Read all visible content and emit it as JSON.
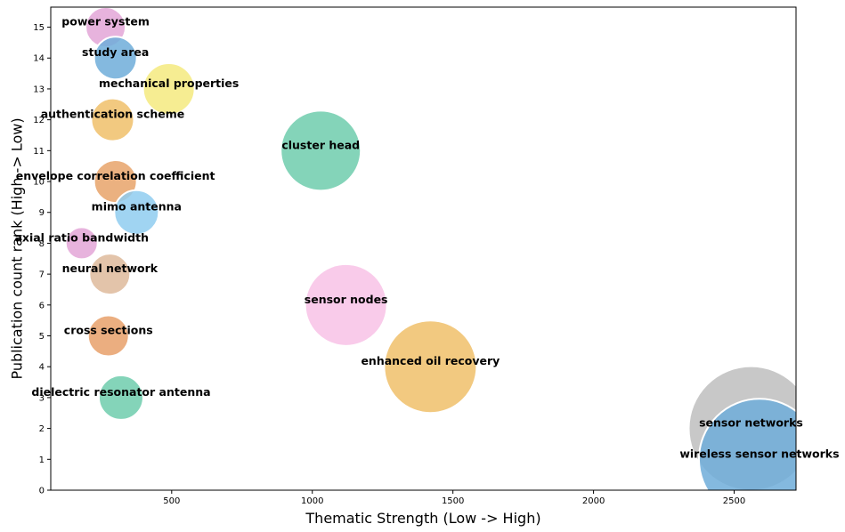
{
  "chart_data": {
    "type": "scatter",
    "subtype": "bubble",
    "title": "",
    "xlabel": "Thematic Strength (Low -> High)",
    "ylabel": "Publication count rank (High -> Low)",
    "xlim": [
      70,
      2720
    ],
    "ylim": [
      0,
      15.65
    ],
    "xticks": [
      500,
      1000,
      1500,
      2000,
      2500
    ],
    "yticks": [
      0,
      1,
      2,
      3,
      4,
      5,
      6,
      7,
      8,
      9,
      10,
      11,
      12,
      13,
      14,
      15
    ],
    "grid": false,
    "legend": "none",
    "points": [
      {
        "label": "power system",
        "x": 265,
        "y": 15,
        "size": 45,
        "color": "#e3a6d7"
      },
      {
        "label": "study area",
        "x": 300,
        "y": 14,
        "size": 48,
        "color": "#6fadd9"
      },
      {
        "label": "mechanical properties",
        "x": 490,
        "y": 13,
        "size": 58,
        "color": "#f5ea7f"
      },
      {
        "label": "authentication scheme",
        "x": 290,
        "y": 12,
        "size": 48,
        "color": "#f0bf6a"
      },
      {
        "label": "cluster head",
        "x": 1030,
        "y": 11,
        "size": 90,
        "color": "#6fcdad"
      },
      {
        "label": "envelope correlation coefficient",
        "x": 300,
        "y": 10,
        "size": 48,
        "color": "#e8a36a"
      },
      {
        "label": "mimo antenna",
        "x": 375,
        "y": 9,
        "size": 50,
        "color": "#8fcdf0"
      },
      {
        "label": "axial ratio bandwidth",
        "x": 180,
        "y": 8,
        "size": 36,
        "color": "#e3a6d7"
      },
      {
        "label": "neural network",
        "x": 280,
        "y": 7,
        "size": 46,
        "color": "#deba9b"
      },
      {
        "label": "sensor nodes",
        "x": 1120,
        "y": 6,
        "size": 92,
        "color": "#f8c2e6"
      },
      {
        "label": "cross sections",
        "x": 275,
        "y": 5,
        "size": 46,
        "color": "#e8a06a"
      },
      {
        "label": "enhanced oil recovery",
        "x": 1420,
        "y": 4,
        "size": 104,
        "color": "#f0bf6a"
      },
      {
        "label": "dielectric resonator antenna",
        "x": 320,
        "y": 3,
        "size": 50,
        "color": "#6fcdad"
      },
      {
        "label": "sensor networks",
        "x": 2560,
        "y": 2,
        "size": 140,
        "color": "#bebebe"
      },
      {
        "label": "wireless sensor networks",
        "x": 2590,
        "y": 1,
        "size": 136,
        "color": "#6fadd9"
      }
    ]
  }
}
